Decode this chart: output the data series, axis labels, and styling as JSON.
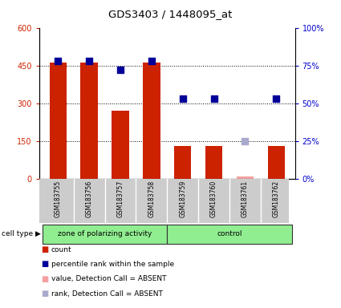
{
  "title": "GDS3403 / 1448095_at",
  "samples": [
    "GSM183755",
    "GSM183756",
    "GSM183757",
    "GSM183758",
    "GSM183759",
    "GSM183760",
    "GSM183761",
    "GSM183762"
  ],
  "counts": [
    460,
    460,
    270,
    460,
    130,
    130,
    null,
    130
  ],
  "counts_absent": [
    null,
    null,
    null,
    null,
    null,
    null,
    10,
    null
  ],
  "percentile_ranks": [
    78,
    78,
    72,
    78,
    53,
    53,
    null,
    53
  ],
  "percentile_ranks_absent": [
    null,
    null,
    null,
    null,
    null,
    null,
    25,
    null
  ],
  "left_ylim": [
    0,
    600
  ],
  "left_yticks": [
    0,
    150,
    300,
    450,
    600
  ],
  "left_yticklabels": [
    "0",
    "150",
    "300",
    "450",
    "600"
  ],
  "right_ylim": [
    0,
    100
  ],
  "right_yticks": [
    0,
    25,
    50,
    75,
    100
  ],
  "right_yticklabels": [
    "0%",
    "25%",
    "50%",
    "75%",
    "100%"
  ],
  "bar_color": "#cc2200",
  "bar_absent_color": "#f4a0a0",
  "dot_color": "#000099",
  "dot_absent_color": "#aaaacc",
  "left_tick_color": "#cc2200",
  "right_tick_color": "#0000cc",
  "group1_label": "zone of polarizing activity",
  "group2_label": "control",
  "group1_indices": [
    0,
    1,
    2,
    3
  ],
  "group2_indices": [
    4,
    5,
    6,
    7
  ],
  "cell_type_label": "cell type",
  "legend_items": [
    {
      "label": "count",
      "color": "#cc2200"
    },
    {
      "label": "percentile rank within the sample",
      "color": "#000099"
    },
    {
      "label": "value, Detection Call = ABSENT",
      "color": "#f4a0a0"
    },
    {
      "label": "rank, Detection Call = ABSENT",
      "color": "#aaaacc"
    }
  ],
  "bar_width": 0.55,
  "dot_size": 28
}
